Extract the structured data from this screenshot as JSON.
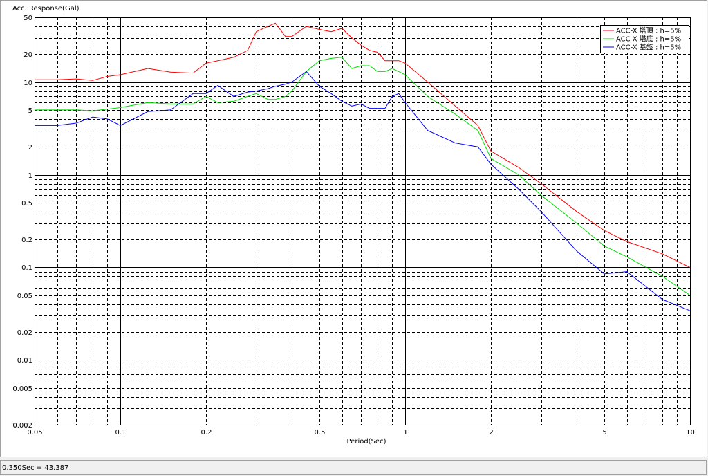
{
  "chart_data": {
    "type": "line",
    "y_axis_title": "Acc. Response(Gal)",
    "x_axis_title": "Period(Sec)",
    "log_x": true,
    "log_y": true,
    "grid": true,
    "legend_position": "upper-right",
    "xlim": [
      0.05,
      10
    ],
    "ylim": [
      0.002,
      50
    ],
    "xticks": [
      0.05,
      0.1,
      0.2,
      0.5,
      1,
      2,
      5,
      10
    ],
    "yticks": [
      0.002,
      0.005,
      0.01,
      0.02,
      0.05,
      0.1,
      0.2,
      0.5,
      1,
      2,
      5,
      10,
      20,
      50
    ],
    "x_minor_grid": [
      0.06,
      0.07,
      0.08,
      0.09,
      0.3,
      0.4,
      0.6,
      0.7,
      0.8,
      0.9,
      3,
      4,
      6,
      7,
      8,
      9
    ],
    "y_minor_grid": [
      0.003,
      0.004,
      0.006,
      0.007,
      0.008,
      0.009,
      0.03,
      0.04,
      0.06,
      0.07,
      0.08,
      0.09,
      0.3,
      0.4,
      0.6,
      0.7,
      0.8,
      0.9,
      3,
      4,
      6,
      7,
      8,
      9,
      30,
      40
    ],
    "x": [
      0.05,
      0.06,
      0.07,
      0.08,
      0.09,
      0.1,
      0.125,
      0.15,
      0.18,
      0.2,
      0.22,
      0.25,
      0.28,
      0.3,
      0.33,
      0.35,
      0.38,
      0.4,
      0.45,
      0.5,
      0.55,
      0.6,
      0.65,
      0.7,
      0.75,
      0.8,
      0.85,
      0.9,
      0.95,
      1,
      1.2,
      1.5,
      1.8,
      2,
      2.5,
      3,
      4,
      5,
      6,
      8,
      10
    ],
    "series": [
      {
        "name": "ACC-X 塔頂 : h=5%",
        "color": "#ff0000",
        "values": [
          10.6,
          10.6,
          10.8,
          10.4,
          11.5,
          12,
          14,
          12.8,
          12.5,
          16,
          17,
          18.5,
          22,
          35,
          40,
          43.4,
          31,
          31,
          40,
          37,
          35,
          38,
          30,
          25,
          22,
          21,
          17,
          17,
          17,
          16,
          10,
          5.5,
          3.4,
          1.8,
          1.2,
          0.8,
          0.4,
          0.25,
          0.19,
          0.14,
          0.1
        ]
      },
      {
        "name": "ACC-X 塔底 : h=5%",
        "color": "#00dd00",
        "values": [
          5,
          5,
          5,
          4.9,
          5.1,
          5.3,
          6,
          5.8,
          5.8,
          7,
          6,
          6.2,
          7,
          7.5,
          6.5,
          6.5,
          7,
          8,
          13,
          17,
          18,
          18.5,
          14,
          15,
          15,
          13,
          13,
          14,
          13,
          12,
          7,
          4.5,
          3,
          1.5,
          1,
          0.6,
          0.3,
          0.17,
          0.13,
          0.08,
          0.05
        ]
      },
      {
        "name": "ACC-X 基盤 : h=5%",
        "color": "#0000ff",
        "values": [
          3.4,
          3.4,
          3.6,
          4.2,
          4,
          3.4,
          4.8,
          5,
          7.5,
          7.5,
          9.2,
          7,
          7.8,
          8,
          8.5,
          9,
          9.5,
          10,
          13,
          9,
          7.5,
          6.2,
          5.5,
          5.8,
          5.2,
          5.2,
          5.2,
          7,
          7.5,
          6,
          3,
          2.2,
          2,
          1.3,
          0.7,
          0.4,
          0.15,
          0.085,
          0.09,
          0.045,
          0.034
        ]
      }
    ]
  },
  "status_bar": "0.350Sec = 43.387"
}
